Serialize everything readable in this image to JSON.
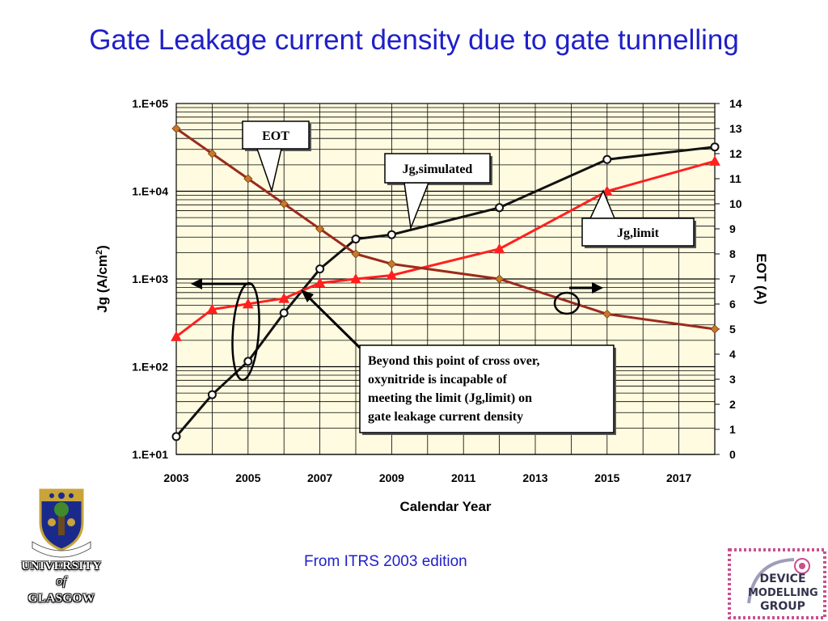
{
  "slide": {
    "title": "Gate Leakage current density due to gate tunnelling",
    "source": "From ITRS 2003 edition"
  },
  "colors": {
    "title": "#1f1fc8",
    "plot_bg": "#fffbe0",
    "eot": "#9b2a1e",
    "jg_limit": "#ff2020",
    "jg_simulated": "#111111"
  },
  "chart_data": {
    "type": "line",
    "xlabel": "Calendar Year",
    "ylabel_left": "Jg (A/cm",
    "ylabel_left_sup": "2",
    "ylabel_left_tail": ")",
    "ylabel_right": "EOT (A)",
    "x_ticks": [
      "2003",
      "2005",
      "2007",
      "2009",
      "2011",
      "2013",
      "2015",
      "2017"
    ],
    "xlim": [
      2003,
      2018
    ],
    "y_left_log": true,
    "y_left_ticks": [
      "1.E+01",
      "1.E+02",
      "1.E+03",
      "1.E+04",
      "1.E+05"
    ],
    "ylim_left": [
      10,
      100000
    ],
    "y_right_ticks": [
      "0",
      "1",
      "2",
      "3",
      "4",
      "5",
      "6",
      "7",
      "8",
      "9",
      "10",
      "11",
      "12",
      "13",
      "14"
    ],
    "ylim_right": [
      0,
      14
    ],
    "grid": true,
    "series": [
      {
        "name": "Jg,simulated",
        "axis": "left",
        "x": [
          2003,
          2004,
          2005,
          2006,
          2007,
          2008,
          2009,
          2012,
          2015,
          2018
        ],
        "y": [
          16,
          48,
          115,
          410,
          1300,
          2850,
          3200,
          6500,
          23000,
          32000
        ]
      },
      {
        "name": "Jg,limit",
        "axis": "left",
        "x": [
          2003,
          2004,
          2005,
          2006,
          2007,
          2008,
          2009,
          2012,
          2015,
          2018
        ],
        "y": [
          220,
          450,
          520,
          600,
          900,
          1000,
          1100,
          2200,
          10000,
          22000
        ]
      },
      {
        "name": "EOT",
        "axis": "right",
        "x": [
          2003,
          2004,
          2005,
          2006,
          2007,
          2008,
          2009,
          2012,
          2015,
          2018
        ],
        "y": [
          13,
          12,
          11,
          10,
          9,
          8,
          7.6,
          7,
          5.6,
          5
        ]
      }
    ],
    "annotations": {
      "eot": "EOT",
      "jg_simulated": "Jg,simulated",
      "jg_limit": "Jg,limit",
      "crossover": [
        "Beyond this point of cross over,",
        "oxynitride is incapable of",
        "meeting the limit (Jg,limit) on",
        "gate leakage current density"
      ]
    }
  },
  "footer": {
    "university": [
      "UNIVERSITY",
      "of",
      "GLASGOW"
    ],
    "group": [
      "DEVICE",
      "MODELLING",
      "GROUP"
    ]
  }
}
